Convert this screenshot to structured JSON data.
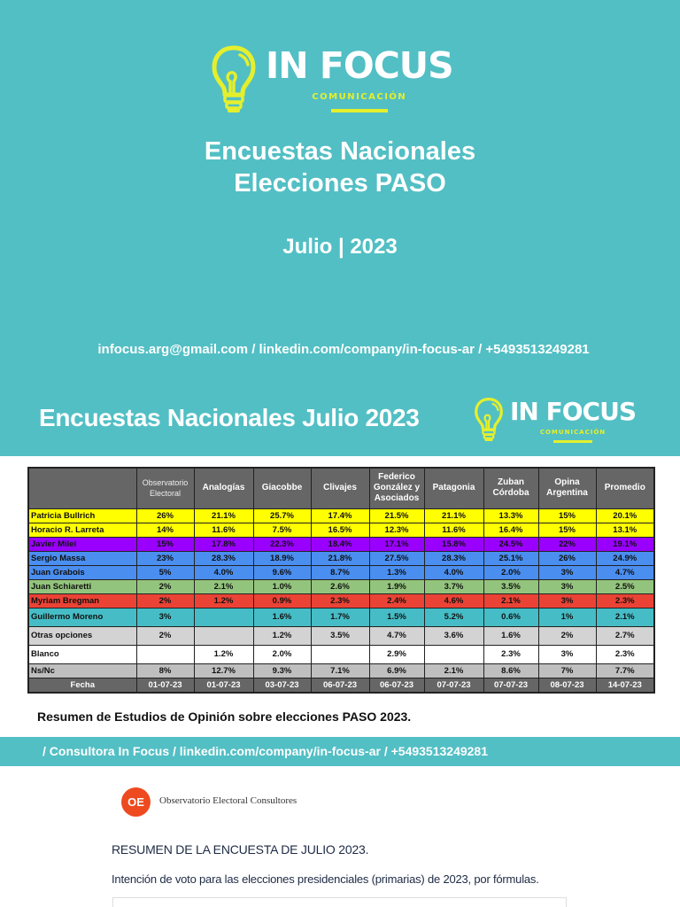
{
  "colors": {
    "brand_teal": "#52bfc4",
    "brand_yellow": "#e4ef2d",
    "header_gray": "#666666",
    "row_yellow": "#ffff00",
    "row_purple": "#9a00ff",
    "row_blue": "#4a8ef0",
    "row_green": "#93c47d",
    "row_red": "#ea4335",
    "row_cyan": "#46bdc6",
    "row_lightgray": "#d3d3d3",
    "row_white": "#ffffff",
    "row_gray": "#bfbfbf",
    "oe_orange": "#ee4a1f"
  },
  "cover": {
    "logo": {
      "brand": "IN FOCUS",
      "sub": "COMUNICACIÓN",
      "icon": "lightbulb-icon"
    },
    "title_line1": "Encuestas Nacionales",
    "title_line2": "Elecciones PASO",
    "date": "Julio | 2023",
    "contact": "infocus.arg@gmail.com / linkedin.com/company/in-focus-ar / +5493513249281"
  },
  "slide2": {
    "title": "Encuestas Nacionales Julio 2023",
    "logo": {
      "brand": "IN FOCUS",
      "sub": "COMUNICACIÓN",
      "icon": "lightbulb-icon"
    }
  },
  "table": {
    "columns": [
      "",
      "Observatorio Electoral",
      "Analogías",
      "Giacobbe",
      "Clivajes",
      "Federico González y Asociados",
      "Patagonia",
      "Zuban Córdoba",
      "Opina Argentina",
      "Promedio"
    ],
    "rows": [
      {
        "name": "Patricia Bullrich",
        "color": "#ffff00",
        "values": [
          "26%",
          "21.1%",
          "25.7%",
          "17.4%",
          "21.5%",
          "21.1%",
          "13.3%",
          "15%",
          "20.1%"
        ]
      },
      {
        "name": "Horacio R. Larreta",
        "color": "#ffff00",
        "values": [
          "14%",
          "11.6%",
          "7.5%",
          "16.5%",
          "12.3%",
          "11.6%",
          "16.4%",
          "15%",
          "13.1%"
        ]
      },
      {
        "name": "Javier Milei",
        "color": "#9a00ff",
        "values": [
          "15%",
          "17.8%",
          "22.3%",
          "18.4%",
          "17.1%",
          "15.8%",
          "24.5%",
          "22%",
          "19.1%"
        ]
      },
      {
        "name": "Sergio Massa",
        "color": "#4a8ef0",
        "values": [
          "23%",
          "28.3%",
          "18.9%",
          "21.8%",
          "27.5%",
          "28.3%",
          "25.1%",
          "26%",
          "24.9%"
        ]
      },
      {
        "name": "Juan Grabois",
        "color": "#4a8ef0",
        "values": [
          "5%",
          "4.0%",
          "9.6%",
          "8.7%",
          "1.3%",
          "4.0%",
          "2.0%",
          "3%",
          "4.7%"
        ]
      },
      {
        "name": "Juan Schiaretti",
        "color": "#93c47d",
        "values": [
          "2%",
          "2.1%",
          "1.0%",
          "2.6%",
          "1.9%",
          "3.7%",
          "3.5%",
          "3%",
          "2.5%"
        ]
      },
      {
        "name": "Myriam Bregman",
        "color": "#ea4335",
        "values": [
          "2%",
          "1.2%",
          "0.9%",
          "2.3%",
          "2.4%",
          "4.6%",
          "2.1%",
          "3%",
          "2.3%"
        ]
      },
      {
        "name": "Guillermo Moreno",
        "color": "#46bdc6",
        "values": [
          "3%",
          "",
          "1.6%",
          "1.7%",
          "1.5%",
          "5.2%",
          "0.6%",
          "1%",
          "2.1%"
        ]
      },
      {
        "name": "Otras opciones",
        "color": "#d3d3d3",
        "values": [
          "2%",
          "",
          "1.2%",
          "3.5%",
          "4.7%",
          "3.6%",
          "1.6%",
          "2%",
          "2.7%"
        ]
      },
      {
        "name": "Blanco",
        "color": "#ffffff",
        "values": [
          "",
          "1.2%",
          "2.0%",
          "",
          "2.9%",
          "",
          "2.3%",
          "3%",
          "2.3%"
        ]
      },
      {
        "name": "Ns/Nc",
        "color": "#bfbfbf",
        "values": [
          "8%",
          "12.7%",
          "9.3%",
          "7.1%",
          "6.9%",
          "2.1%",
          "8.6%",
          "7%",
          "7.7%"
        ]
      }
    ],
    "fecha": {
      "label": "Fecha",
      "values": [
        "01-07-23",
        "01-07-23",
        "03-07-23",
        "06-07-23",
        "06-07-23",
        "07-07-23",
        "07-07-23",
        "08-07-23",
        "14-07-23"
      ]
    }
  },
  "caption": "Resumen de Estudios de Opinión sobre elecciones PASO 2023.",
  "band": {
    "text": "/ Consultora In Focus / linkedin.com/company/in-focus-ar / +5493513249281"
  },
  "source_doc": {
    "logo_text": "OE",
    "org_name": "Observatorio Electoral Consultores",
    "heading": "RESUMEN DE LA ENCUESTA DE JULIO 2023.",
    "subheading": "Intención de voto para las elecciones presidenciales (primarias) de 2023, por fórmulas."
  }
}
